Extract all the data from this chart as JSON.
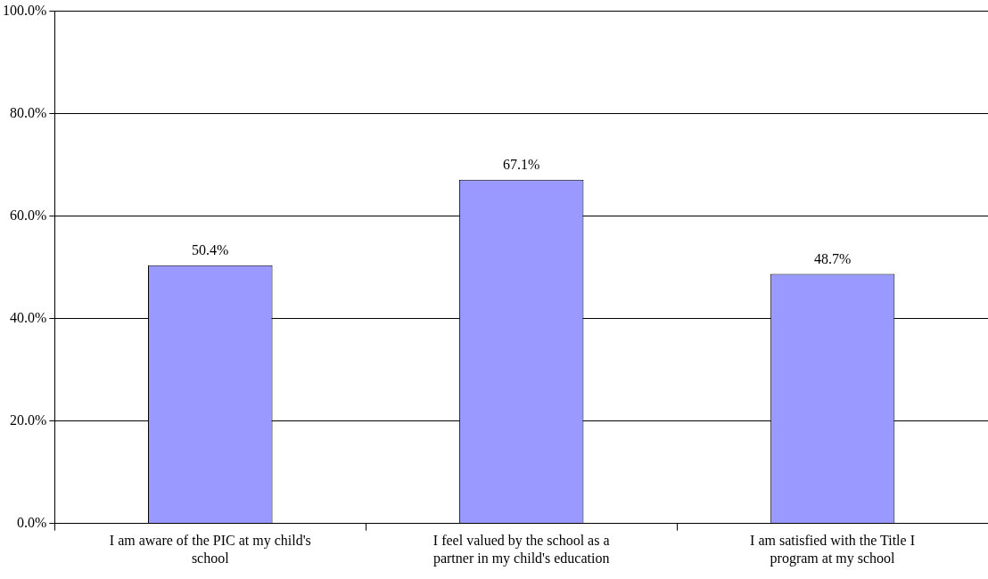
{
  "chart_data": {
    "type": "bar",
    "categories": [
      "I am aware of the PIC at my child's school",
      "I feel valued by the school as a partner in my child's education",
      "I am satisfied with the Title I program at my school"
    ],
    "values": [
      50.4,
      67.1,
      48.7
    ],
    "value_labels": [
      "50.4%",
      "67.1%",
      "48.7%"
    ],
    "color": "#9999ff",
    "ylim": [
      0,
      100
    ],
    "yticks": [
      {
        "value": 0,
        "label": "0.0%"
      },
      {
        "value": 20,
        "label": "20.0%"
      },
      {
        "value": 40,
        "label": "40.0%"
      },
      {
        "value": 60,
        "label": "60.0%"
      },
      {
        "value": 80,
        "label": "80.0%"
      },
      {
        "value": 100,
        "label": "100.0%"
      }
    ],
    "grid": "y",
    "legend": false
  }
}
